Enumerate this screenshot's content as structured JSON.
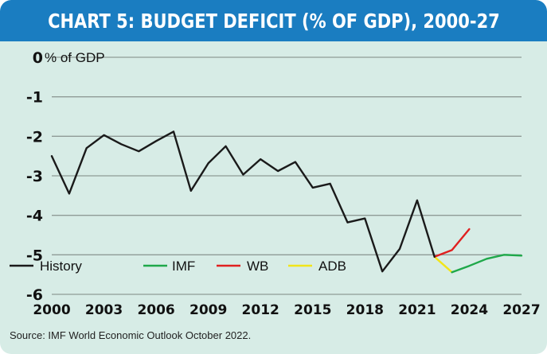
{
  "title": "CHART 5: BUDGET DEFICIT (% OF GDP), 2000-27",
  "source": "Source: IMF World Economic Outlook October 2022.",
  "chart_data": {
    "type": "line",
    "ylabel": "% of GDP",
    "xlim": [
      2000,
      2027
    ],
    "ylim": [
      -6,
      0
    ],
    "y_ticks": [
      0,
      -1,
      -2,
      -3,
      -4,
      -5,
      -6
    ],
    "x_ticks": [
      2000,
      2003,
      2006,
      2009,
      2012,
      2015,
      2018,
      2021,
      2024,
      2027
    ],
    "grid": "horizontal",
    "legend_position": "bottom-left",
    "series": [
      {
        "name": "History",
        "color": "#1a1a1a",
        "points": [
          [
            2000,
            -2.5
          ],
          [
            2001,
            -3.45
          ],
          [
            2002,
            -2.3
          ],
          [
            2003,
            -1.97
          ],
          [
            2004,
            -2.2
          ],
          [
            2005,
            -2.38
          ],
          [
            2006,
            -2.12
          ],
          [
            2007,
            -1.88
          ],
          [
            2008,
            -3.38
          ],
          [
            2009,
            -2.68
          ],
          [
            2010,
            -2.25
          ],
          [
            2011,
            -2.97
          ],
          [
            2012,
            -2.58
          ],
          [
            2013,
            -2.88
          ],
          [
            2014,
            -2.65
          ],
          [
            2015,
            -3.3
          ],
          [
            2016,
            -3.2
          ],
          [
            2017,
            -4.18
          ],
          [
            2018,
            -4.08
          ],
          [
            2019,
            -5.42
          ],
          [
            2020,
            -4.85
          ],
          [
            2021,
            -3.62
          ],
          [
            2022,
            -5.05
          ]
        ]
      },
      {
        "name": "IMF",
        "color": "#1fa84a",
        "points": [
          [
            2023,
            -5.44
          ],
          [
            2024,
            -5.28
          ],
          [
            2025,
            -5.1
          ],
          [
            2026,
            -5.0
          ],
          [
            2027,
            -5.02
          ]
        ]
      },
      {
        "name": "WB",
        "color": "#e02020",
        "points": [
          [
            2022,
            -5.05
          ],
          [
            2023,
            -4.88
          ],
          [
            2024,
            -4.35
          ]
        ]
      },
      {
        "name": "ADB",
        "color": "#f2e51a",
        "points": [
          [
            2022,
            -5.05
          ],
          [
            2023,
            -5.44
          ]
        ]
      }
    ]
  }
}
